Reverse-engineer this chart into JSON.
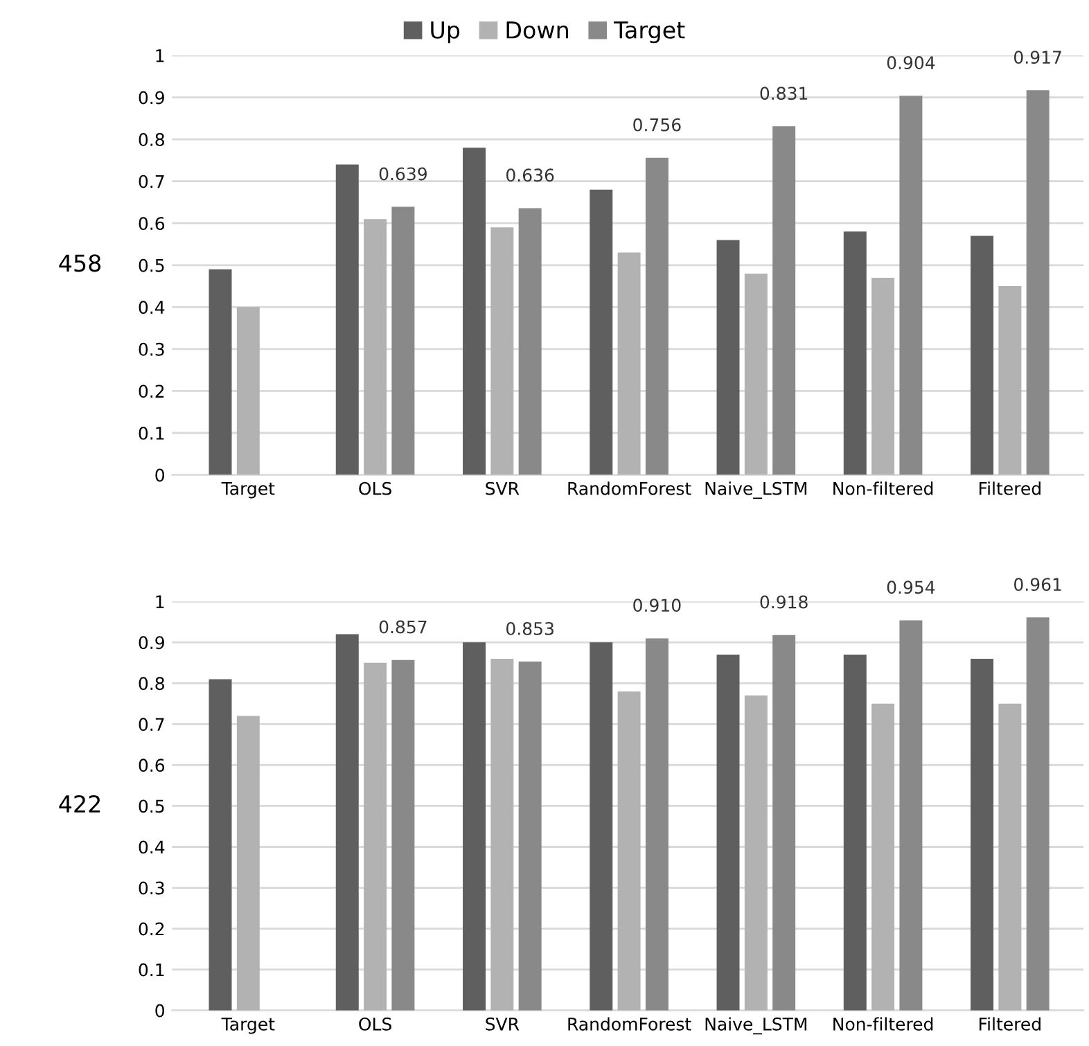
{
  "chart_data": [
    {
      "type": "bar",
      "ylabel": "458",
      "categories": [
        "Target",
        "OLS",
        "SVR",
        "RandomForest",
        "Naive_LSTM",
        "Non-filtered",
        "Filtered"
      ],
      "ylim": [
        0,
        1
      ],
      "yticks": [
        0,
        0.1,
        0.2,
        0.3,
        0.4,
        0.5,
        0.6,
        0.7,
        0.8,
        0.9,
        1
      ],
      "grid": "y",
      "legend": "top",
      "series": [
        {
          "name": "Up",
          "color": "#5f5f5f",
          "values": [
            0.49,
            0.74,
            0.78,
            0.68,
            0.56,
            0.58,
            0.57
          ]
        },
        {
          "name": "Down",
          "color": "#b2b2b2",
          "values": [
            0.4,
            0.61,
            0.59,
            0.53,
            0.48,
            0.47,
            0.45
          ]
        },
        {
          "name": "Target",
          "color": "#898989",
          "values": [
            null,
            0.639,
            0.636,
            0.756,
            0.831,
            0.904,
            0.917
          ],
          "value_labels": [
            null,
            "0.639",
            "0.636",
            "0.756",
            "0.831",
            "0.904",
            "0.917"
          ]
        }
      ]
    },
    {
      "type": "bar",
      "ylabel": "422",
      "categories": [
        "Target",
        "OLS",
        "SVR",
        "RandomForest",
        "Naive_LSTM",
        "Non-filtered",
        "Filtered"
      ],
      "ylim": [
        0,
        1
      ],
      "yticks": [
        0,
        0.1,
        0.2,
        0.3,
        0.4,
        0.5,
        0.6,
        0.7,
        0.8,
        0.9,
        1
      ],
      "grid": "y",
      "series": [
        {
          "color": "#5f5f5f",
          "values": [
            0.81,
            0.92,
            0.9,
            0.9,
            0.87,
            0.87,
            0.86
          ]
        },
        {
          "color": "#b2b2b2",
          "values": [
            0.72,
            0.85,
            0.86,
            0.78,
            0.77,
            0.75,
            0.75
          ]
        },
        {
          "color": "#898989",
          "values": [
            null,
            0.857,
            0.853,
            0.91,
            0.918,
            0.954,
            0.961
          ],
          "value_labels": [
            null,
            "0.857",
            "0.853",
            "0.910",
            "0.918",
            "0.954",
            "0.961"
          ]
        }
      ]
    }
  ]
}
